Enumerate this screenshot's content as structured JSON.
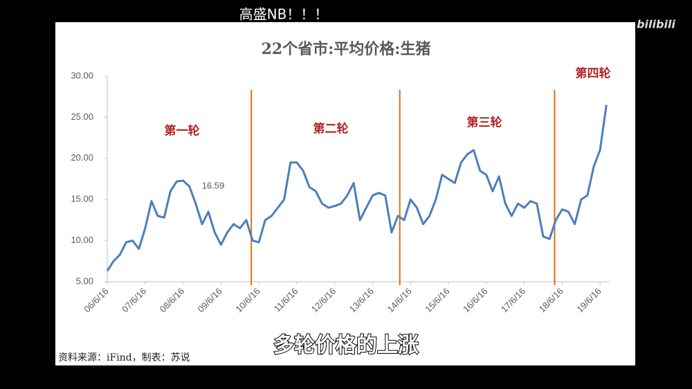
{
  "overlay_text": "高盛NB！！！",
  "watermark": "bilibili",
  "caption": "多轮价格的上涨",
  "source": "资料来源：iFind，制表：苏说",
  "chart_data": {
    "type": "line",
    "title": "22个省市:平均价格:生猪",
    "categories": [
      "06/6/16",
      null,
      null,
      null,
      null,
      null,
      "07/6/16",
      null,
      null,
      null,
      null,
      null,
      "08/6/16",
      null,
      null,
      null,
      null,
      null,
      "09/6/16",
      null,
      null,
      null,
      null,
      null,
      "10/6/16",
      null,
      null,
      null,
      null,
      null,
      "11/6/16",
      null,
      null,
      null,
      null,
      null,
      "12/6/16",
      null,
      null,
      null,
      null,
      null,
      "13/6/16",
      null,
      null,
      null,
      null,
      null,
      "14/6/16",
      null,
      null,
      null,
      null,
      null,
      "15/6/16",
      null,
      null,
      null,
      null,
      null,
      "16/6/16",
      null,
      null,
      null,
      null,
      null,
      "17/6/16",
      null,
      null,
      null,
      null,
      null,
      "18/6/16",
      null,
      null,
      null,
      null,
      null,
      "19/6/16",
      null
    ],
    "series": [
      {
        "name": "22个省市:平均价格:生猪",
        "color": "#4a7ebb",
        "values": [
          6.3,
          7.5,
          8.3,
          9.8,
          10.0,
          9.0,
          11.5,
          14.8,
          13.0,
          12.8,
          16.0,
          17.2,
          17.3,
          16.59,
          14.5,
          12.0,
          13.5,
          11.0,
          9.5,
          11.0,
          12.0,
          11.5,
          12.5,
          10.0,
          9.8,
          12.5,
          13.0,
          14.0,
          15.0,
          19.5,
          19.5,
          18.5,
          16.5,
          16.0,
          14.5,
          14.0,
          14.2,
          14.5,
          15.5,
          17.0,
          12.5,
          14.0,
          15.5,
          15.8,
          15.5,
          11.0,
          13.0,
          12.5,
          15.0,
          14.0,
          12.0,
          13.0,
          15.0,
          18.0,
          17.5,
          17.0,
          19.5,
          20.5,
          21.0,
          18.5,
          18.0,
          16.0,
          17.8,
          14.5,
          13.0,
          14.5,
          14.0,
          14.8,
          14.5,
          10.5,
          10.2,
          12.5,
          13.8,
          13.5,
          12.0,
          15.0,
          15.5,
          19.0,
          21.0,
          26.5
        ],
        "value_labels": [
          null,
          null,
          null,
          null,
          null,
          null,
          null,
          null,
          null,
          null,
          null,
          null,
          null,
          "16.59"
        ]
      }
    ],
    "ylim": [
      5,
      30
    ],
    "yticks": [
      {
        "value": 5,
        "label": "5.00"
      },
      {
        "value": 10,
        "label": "10.00"
      },
      {
        "value": 15,
        "label": "15.00"
      },
      {
        "value": 20,
        "label": "20.00"
      },
      {
        "value": 25,
        "label": "25.00"
      },
      {
        "value": 30,
        "label": "30.00"
      }
    ],
    "vlines": [
      22.8,
      46.3,
      70.8
    ],
    "vline_color": "#e46c0a",
    "round_labels": [
      "第一轮",
      "第二轮",
      "第三轮",
      "第四轮"
    ]
  }
}
